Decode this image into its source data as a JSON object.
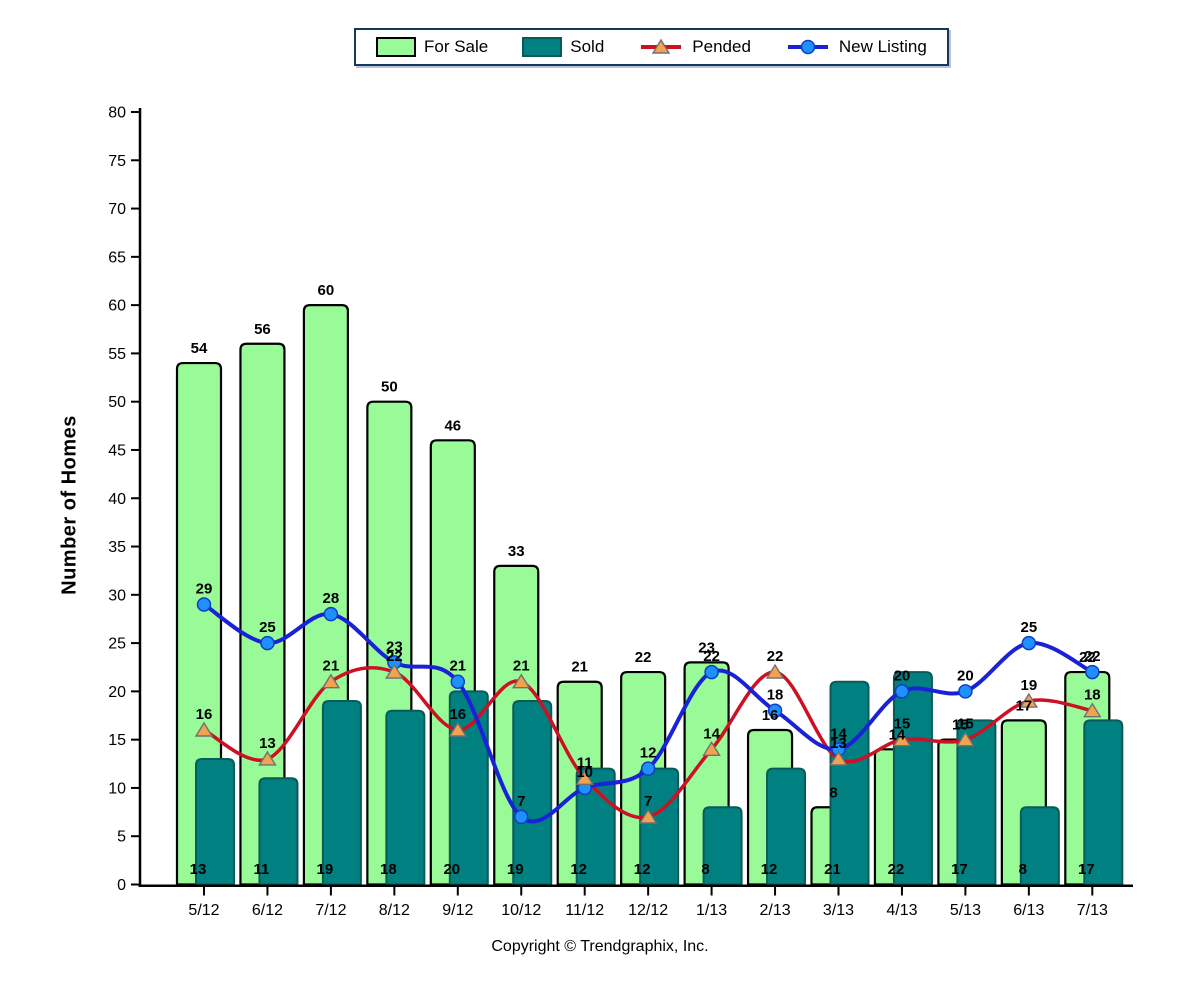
{
  "legend": {
    "items": [
      {
        "label": "For Sale",
        "swatch": "bar-green"
      },
      {
        "label": "Sold",
        "swatch": "bar-teal"
      },
      {
        "label": "Pended",
        "swatch": "line-triangle"
      },
      {
        "label": "New Listing",
        "swatch": "line-circle"
      }
    ]
  },
  "footer": {
    "copyright": "Copyright © Trendgraphix, Inc."
  },
  "colors": {
    "for_sale_fill": "#98fb98",
    "for_sale_border": "#000000",
    "sold_fill": "#008080",
    "sold_border": "#0a5a58",
    "pended_line": "#cc1122",
    "pended_marker_fill": "#f2a352",
    "pended_marker_border": "#707070",
    "new_listing_line": "#1a22d8",
    "new_listing_marker_fill": "#1e90ff",
    "new_listing_marker_border": "#0f3fc0",
    "axis": "#000000",
    "legend_border": "#17375e",
    "label_text": "#000000"
  },
  "chart_data": {
    "type": "bar",
    "subtype": "combo-bar-line",
    "categories": [
      "5/12",
      "6/12",
      "7/12",
      "8/12",
      "9/12",
      "10/12",
      "11/12",
      "12/12",
      "1/13",
      "2/13",
      "3/13",
      "4/13",
      "5/13",
      "6/13",
      "7/13"
    ],
    "series": [
      {
        "name": "For Sale",
        "type": "bar",
        "marker": "none",
        "values": [
          54,
          56,
          60,
          50,
          46,
          33,
          21,
          22,
          23,
          16,
          8,
          14,
          15,
          17,
          22
        ]
      },
      {
        "name": "Sold",
        "type": "bar",
        "marker": "none",
        "values": [
          13,
          11,
          19,
          18,
          20,
          19,
          12,
          12,
          8,
          12,
          21,
          22,
          17,
          8,
          17
        ]
      },
      {
        "name": "Pended",
        "type": "line",
        "marker": "triangle",
        "values": [
          16,
          13,
          21,
          22,
          16,
          21,
          11,
          7,
          14,
          22,
          13,
          15,
          15,
          19,
          18
        ]
      },
      {
        "name": "New Listing",
        "type": "line",
        "marker": "circle",
        "values": [
          29,
          25,
          28,
          23,
          21,
          7,
          10,
          12,
          22,
          18,
          14,
          20,
          20,
          25,
          22
        ]
      }
    ],
    "title": "",
    "xlabel": "",
    "ylabel": "Number of Homes",
    "ylim": [
      0,
      80
    ],
    "y_tick_step": 5,
    "y_ticks": [
      0,
      5,
      10,
      15,
      20,
      25,
      30,
      35,
      40,
      45,
      50,
      55,
      60,
      65,
      70,
      75,
      80
    ],
    "grid": false,
    "legend_position": "top-center",
    "data_labels": true
  }
}
